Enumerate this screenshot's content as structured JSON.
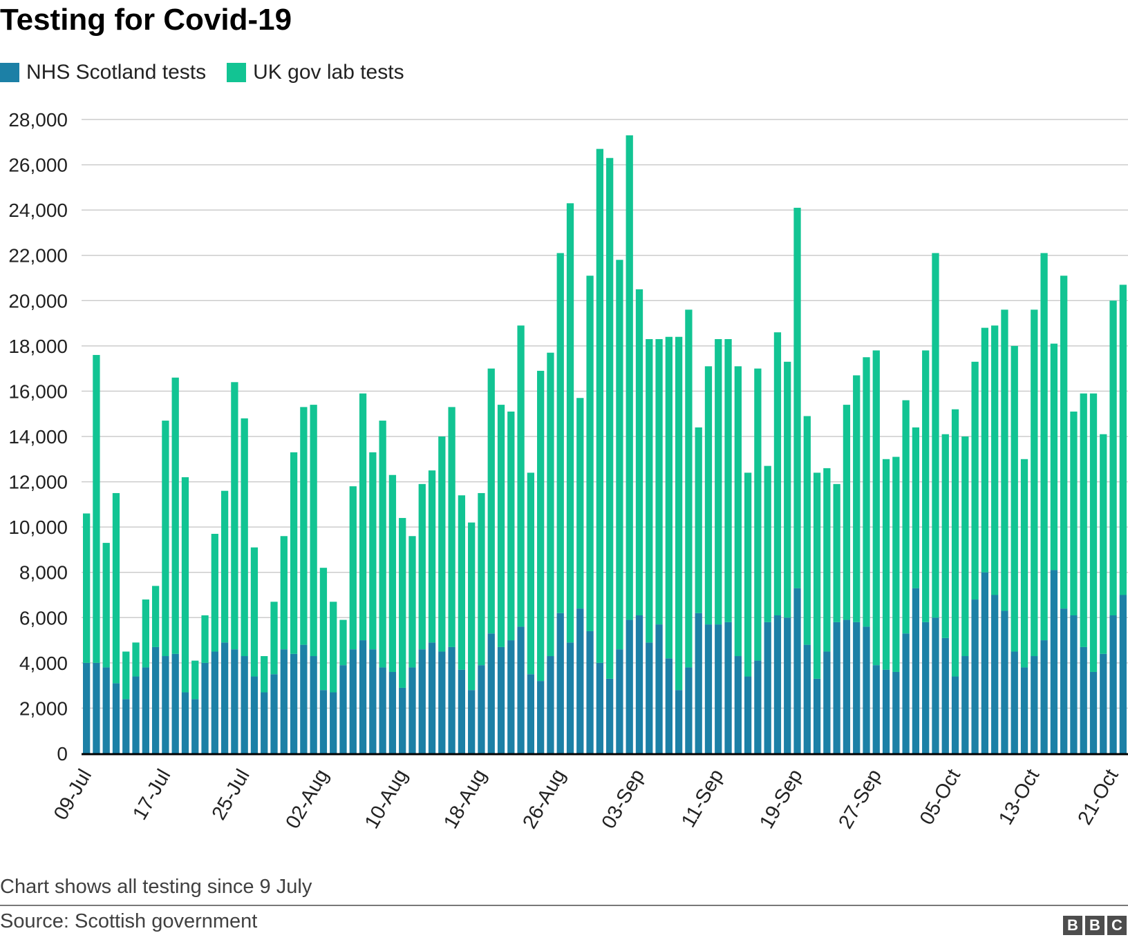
{
  "title": "Testing for Covid-19",
  "note": "Chart shows all testing since 9 July",
  "source": "Source: Scottish government",
  "logo": "BBC",
  "colors": {
    "nhs": "#1c80a6",
    "uk": "#12c493",
    "grid": "#cccccc",
    "axis": "#000000"
  },
  "chart_data": {
    "type": "bar",
    "stacked": true,
    "title": "Testing for Covid-19",
    "legend_position": "top-left",
    "ylim": [
      0,
      28000
    ],
    "yticks": [
      0,
      2000,
      4000,
      6000,
      8000,
      10000,
      12000,
      14000,
      16000,
      18000,
      20000,
      22000,
      24000,
      26000,
      28000
    ],
    "ytick_labels": [
      "0",
      "2,000",
      "4,000",
      "6,000",
      "8,000",
      "10,000",
      "12,000",
      "14,000",
      "16,000",
      "18,000",
      "20,000",
      "22,000",
      "24,000",
      "26,000",
      "28,000"
    ],
    "x_start": "2020-07-09",
    "x_end": "2020-10-22",
    "xtick_labels": [
      {
        "date": "2020-07-09",
        "label": "09-Jul"
      },
      {
        "date": "2020-07-17",
        "label": "17-Jul"
      },
      {
        "date": "2020-07-25",
        "label": "25-Jul"
      },
      {
        "date": "2020-08-02",
        "label": "02-Aug"
      },
      {
        "date": "2020-08-10",
        "label": "10-Aug"
      },
      {
        "date": "2020-08-18",
        "label": "18-Aug"
      },
      {
        "date": "2020-08-26",
        "label": "26-Aug"
      },
      {
        "date": "2020-09-03",
        "label": "03-Sep"
      },
      {
        "date": "2020-09-11",
        "label": "11-Sep"
      },
      {
        "date": "2020-09-19",
        "label": "19-Sep"
      },
      {
        "date": "2020-09-27",
        "label": "27-Sep"
      },
      {
        "date": "2020-10-05",
        "label": "05-Oct"
      },
      {
        "date": "2020-10-13",
        "label": "13-Oct"
      },
      {
        "date": "2020-10-21",
        "label": "21-Oct"
      }
    ],
    "series": [
      {
        "name": "NHS Scotland tests",
        "values": [
          4000,
          4000,
          3800,
          3100,
          2400,
          3400,
          3800,
          4700,
          4300,
          4400,
          2700,
          2400,
          4000,
          4500,
          4900,
          4600,
          4300,
          3400,
          2700,
          3500,
          4600,
          4400,
          4800,
          4300,
          2800,
          2700,
          3900,
          4600,
          5000,
          4600,
          3800,
          3600,
          2900,
          3800,
          4600,
          4900,
          4500,
          4700,
          3700,
          2800,
          3900,
          5300,
          4700,
          5000,
          5600,
          3500,
          3200,
          4300,
          6200,
          4900,
          6400,
          5400,
          4000,
          3300,
          4600,
          5900,
          6100,
          4900,
          5700,
          4200,
          2800,
          3800,
          6200,
          5700,
          5700,
          5800,
          4300,
          3400,
          4100,
          5800,
          6100,
          6000,
          7300,
          4800,
          3300,
          4500,
          5800,
          5900,
          5800,
          5600,
          3900,
          3700,
          3600,
          5300,
          7300,
          5800,
          6000,
          5100,
          3400,
          4300,
          6800,
          8000,
          7000,
          6300,
          4500,
          3800,
          4300,
          5000,
          8100,
          6400,
          6100,
          4700,
          3600,
          4400,
          6100,
          7000
        ]
      },
      {
        "name": "UK gov lab tests",
        "values": [
          6600,
          13600,
          5500,
          8400,
          2100,
          1500,
          3000,
          2700,
          10400,
          12200,
          9500,
          1700,
          2100,
          5200,
          6700,
          11800,
          10500,
          5700,
          1600,
          3200,
          5000,
          8900,
          10500,
          11100,
          5400,
          4000,
          2000,
          7200,
          10900,
          8700,
          10900,
          8700,
          7500,
          5800,
          7300,
          7600,
          9500,
          10600,
          7700,
          7400,
          7600,
          11700,
          10700,
          10100,
          13300,
          8900,
          13700,
          13400,
          15900,
          19400,
          9300,
          15700,
          22700,
          23000,
          17200,
          21400,
          14400,
          13400,
          12600,
          14200,
          15600,
          15800,
          8200,
          11400,
          12600,
          12500,
          12800,
          9000,
          12900,
          6900,
          12500,
          11300,
          16800,
          10100,
          9100,
          8100,
          6100,
          9500,
          10900,
          11900,
          13900,
          9300,
          9500,
          10300,
          7100,
          12000,
          16100,
          9000,
          11800,
          9700,
          10500,
          10800,
          11900,
          13300,
          13500,
          9200,
          15300,
          17100,
          10000,
          14700,
          9000,
          11200,
          12300,
          9700,
          13900,
          13700
        ]
      }
    ]
  }
}
